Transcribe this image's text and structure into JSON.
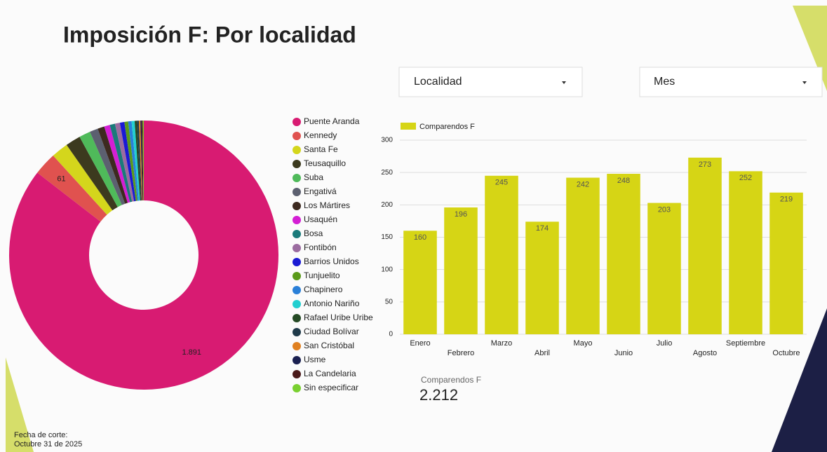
{
  "title": "Imposición F: Por localidad",
  "filters": [
    "Localidad",
    "Mes"
  ],
  "scorecard": {
    "label": "Comparendos F",
    "value": "2.212"
  },
  "footer": [
    "Fecha de corte:",
    "Octubre 31 de 2025"
  ],
  "chart_data": [
    {
      "type": "pie",
      "donut": true,
      "categories": [
        "Puente Aranda",
        "Kennedy",
        "Santa Fe",
        "Teusaquillo",
        "Suba",
        "Engativá",
        "Los Mártires",
        "Usaquén",
        "Bosa",
        "Fontibón",
        "Barrios Unidos",
        "Tunjuelito",
        "Chapinero",
        "Antonio Nariño",
        "Rafael Uribe Uribe",
        "Ciudad Bolívar",
        "San Cristóbal",
        "Usme",
        "La Candelaria",
        "Sin especificar"
      ],
      "values": [
        1891,
        61,
        45,
        40,
        30,
        22,
        18,
        15,
        14,
        13,
        12,
        10,
        9,
        8,
        6,
        5,
        4,
        3,
        3,
        3
      ],
      "value_labels": [
        "1.891",
        "61",
        null,
        null,
        null,
        null,
        null,
        null,
        null,
        null,
        null,
        null,
        null,
        null,
        null,
        null,
        null,
        null,
        null,
        null
      ],
      "colors": [
        "#d81b72",
        "#e0524f",
        "#d4d61c",
        "#3c3a1e",
        "#4fba5a",
        "#5c6070",
        "#3d2a20",
        "#d41fd4",
        "#1a7a7a",
        "#9b6ca0",
        "#1a1ad4",
        "#5a9a1a",
        "#2a80d8",
        "#22cfd0",
        "#254a25",
        "#1f3a4a",
        "#e08020",
        "#1a2050",
        "#4a1a1a",
        "#7ad030"
      ]
    },
    {
      "type": "bar",
      "categories": [
        "Enero",
        "Febrero",
        "Marzo",
        "Abril",
        "Mayo",
        "Junio",
        "Julio",
        "Agosto",
        "Septiembre",
        "Octubre"
      ],
      "series": [
        {
          "name": "Comparendos F",
          "color": "#d6d515",
          "values": [
            160,
            196,
            245,
            174,
            242,
            248,
            203,
            273,
            252,
            219
          ]
        }
      ],
      "ylim": [
        0,
        300
      ],
      "yticks": [
        0,
        50,
        100,
        150,
        200,
        250,
        300
      ],
      "grid": true,
      "legend": "top-left"
    }
  ]
}
